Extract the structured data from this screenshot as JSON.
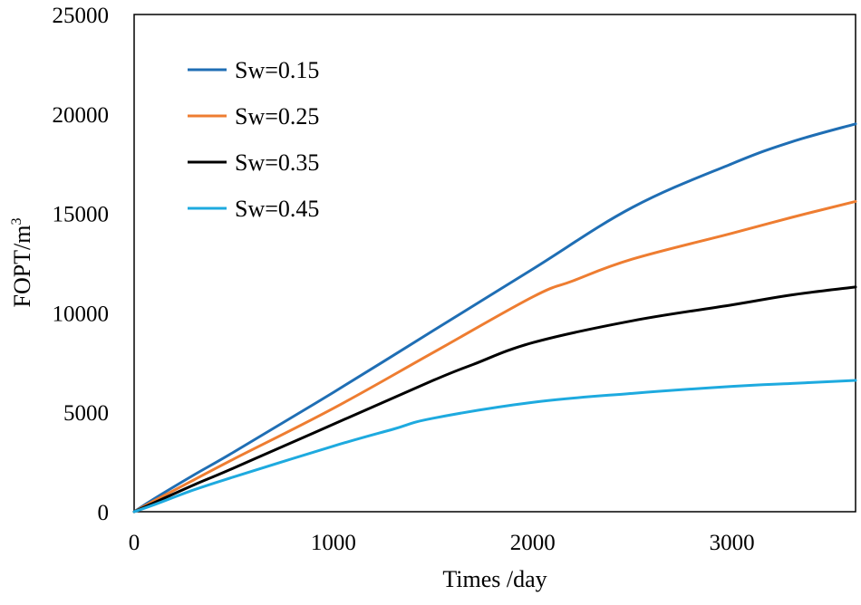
{
  "chart_data": {
    "type": "line",
    "title": "",
    "xlabel": "Times /day",
    "ylabel": "FOPT/m",
    "ylabel_superscript": "3",
    "xlim": [
      0,
      3620
    ],
    "ylim": [
      0,
      25000
    ],
    "x_ticks": [
      0,
      1000,
      2000,
      3000
    ],
    "x_tick_labels": [
      "0",
      "1000",
      "2000",
      "3000"
    ],
    "y_ticks": [
      0,
      5000,
      10000,
      15000,
      20000,
      25000
    ],
    "y_tick_labels": [
      "0",
      "5000",
      "10000",
      "15000",
      "20000",
      "25000"
    ],
    "grid": false,
    "legend_position": "top-left",
    "series": [
      {
        "name": "Sw=0.15",
        "color": "#1F6EB4",
        "x": [
          0,
          100,
          300,
          500,
          1000,
          1500,
          2000,
          2500,
          3000,
          3300,
          3620
        ],
        "y": [
          0,
          650,
          1850,
          3000,
          6000,
          9100,
          12200,
          15300,
          17500,
          18600,
          19500
        ]
      },
      {
        "name": "Sw=0.25",
        "color": "#EE7D31",
        "x": [
          0,
          100,
          300,
          500,
          1000,
          1500,
          2000,
          2200,
          2500,
          3000,
          3300,
          3620
        ],
        "y": [
          0,
          550,
          1600,
          2650,
          5200,
          8000,
          10800,
          11600,
          12700,
          14000,
          14800,
          15600
        ]
      },
      {
        "name": "Sw=0.35",
        "color": "#000000",
        "x": [
          0,
          100,
          300,
          500,
          1000,
          1500,
          1700,
          2000,
          2500,
          3000,
          3300,
          3620
        ],
        "y": [
          0,
          450,
          1350,
          2200,
          4400,
          6600,
          7400,
          8500,
          9600,
          10400,
          10900,
          11300
        ]
      },
      {
        "name": "Sw=0.45",
        "color": "#1EAADF",
        "x": [
          0,
          100,
          300,
          500,
          1000,
          1300,
          1500,
          2000,
          2500,
          3000,
          3300,
          3620
        ],
        "y": [
          0,
          350,
          1100,
          1750,
          3300,
          4150,
          4700,
          5500,
          5950,
          6300,
          6450,
          6600
        ]
      }
    ]
  }
}
